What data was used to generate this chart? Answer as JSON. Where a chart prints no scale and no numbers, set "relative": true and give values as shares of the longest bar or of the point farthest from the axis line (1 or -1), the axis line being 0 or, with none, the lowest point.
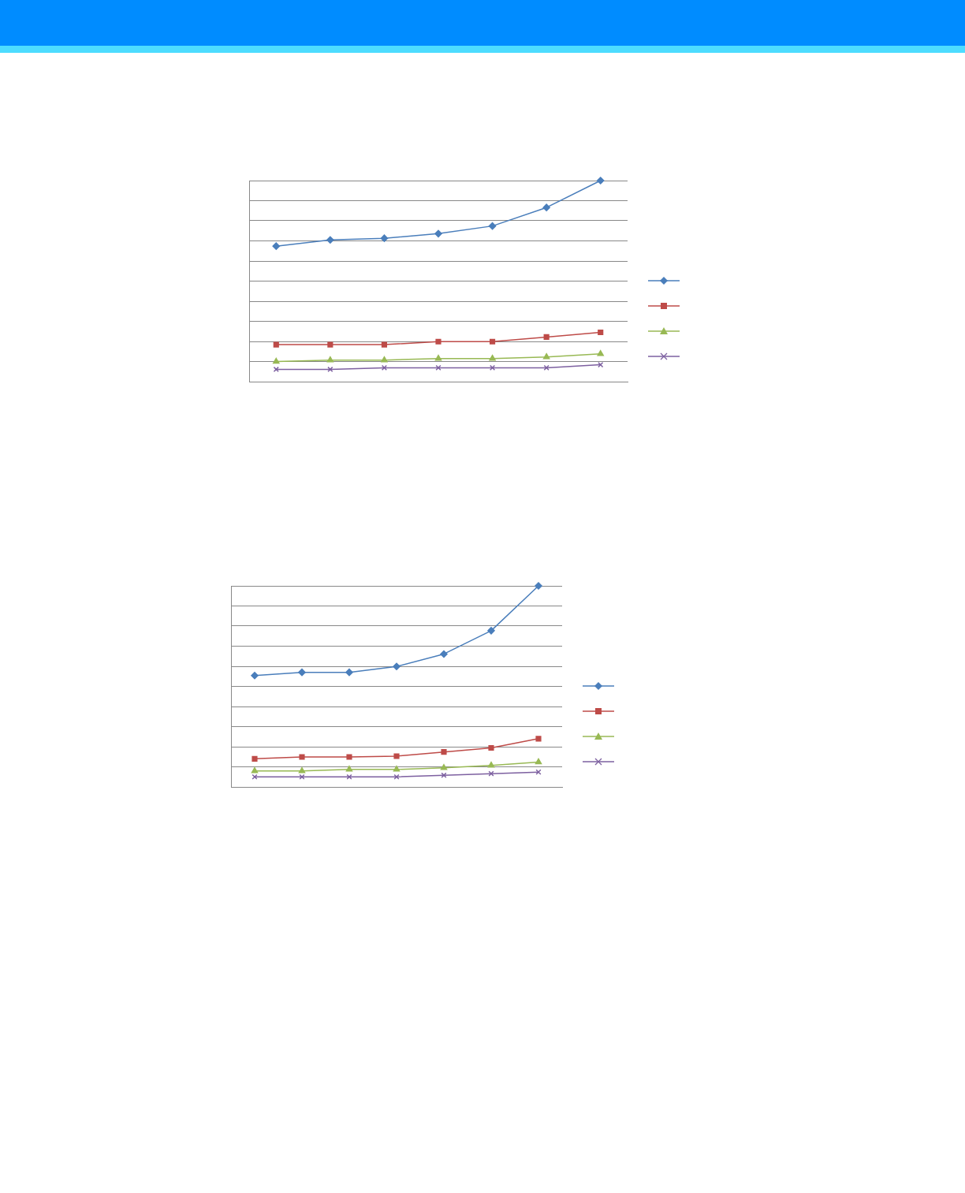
{
  "chart_data": [
    {
      "type": "line",
      "relative": true,
      "categories": [
        null,
        null,
        null,
        null,
        null,
        null,
        null
      ],
      "grid": "y",
      "tick_labels": false,
      "series": [
        {
          "color": "#4a7ebb",
          "marker": "diamond",
          "values": [
            0.674,
            0.705,
            0.713,
            0.736,
            0.774,
            0.866,
            1
          ]
        },
        {
          "color": "#be4b48",
          "marker": "square",
          "values": [
            0.184,
            0.184,
            0.184,
            0.199,
            0.199,
            0.222,
            0.245
          ]
        },
        {
          "color": "#98b954",
          "marker": "triangle",
          "values": [
            0.1,
            0.107,
            0.107,
            0.115,
            0.115,
            0.123,
            0.138
          ]
        },
        {
          "color": "#7d60a0",
          "marker": "cross",
          "values": [
            0.061,
            0.061,
            0.069,
            0.069,
            0.069,
            0.069,
            0.084
          ]
        }
      ]
    },
    {
      "type": "line",
      "relative": true,
      "categories": [
        null,
        null,
        null,
        null,
        null,
        null,
        null
      ],
      "grid": "y",
      "tick_labels": false,
      "series": [
        {
          "color": "#4a7ebb",
          "marker": "diamond",
          "values": [
            0.554,
            0.57,
            0.57,
            0.599,
            0.661,
            0.777,
            1
          ]
        },
        {
          "color": "#be4b48",
          "marker": "square",
          "values": [
            0.14,
            0.149,
            0.149,
            0.153,
            0.174,
            0.194,
            0.24
          ]
        },
        {
          "color": "#98b954",
          "marker": "triangle",
          "values": [
            0.079,
            0.079,
            0.087,
            0.087,
            0.095,
            0.107,
            0.124
          ]
        },
        {
          "color": "#7d60a0",
          "marker": "cross",
          "values": [
            0.05,
            0.05,
            0.05,
            0.05,
            0.058,
            0.066,
            0.074
          ]
        }
      ]
    }
  ]
}
